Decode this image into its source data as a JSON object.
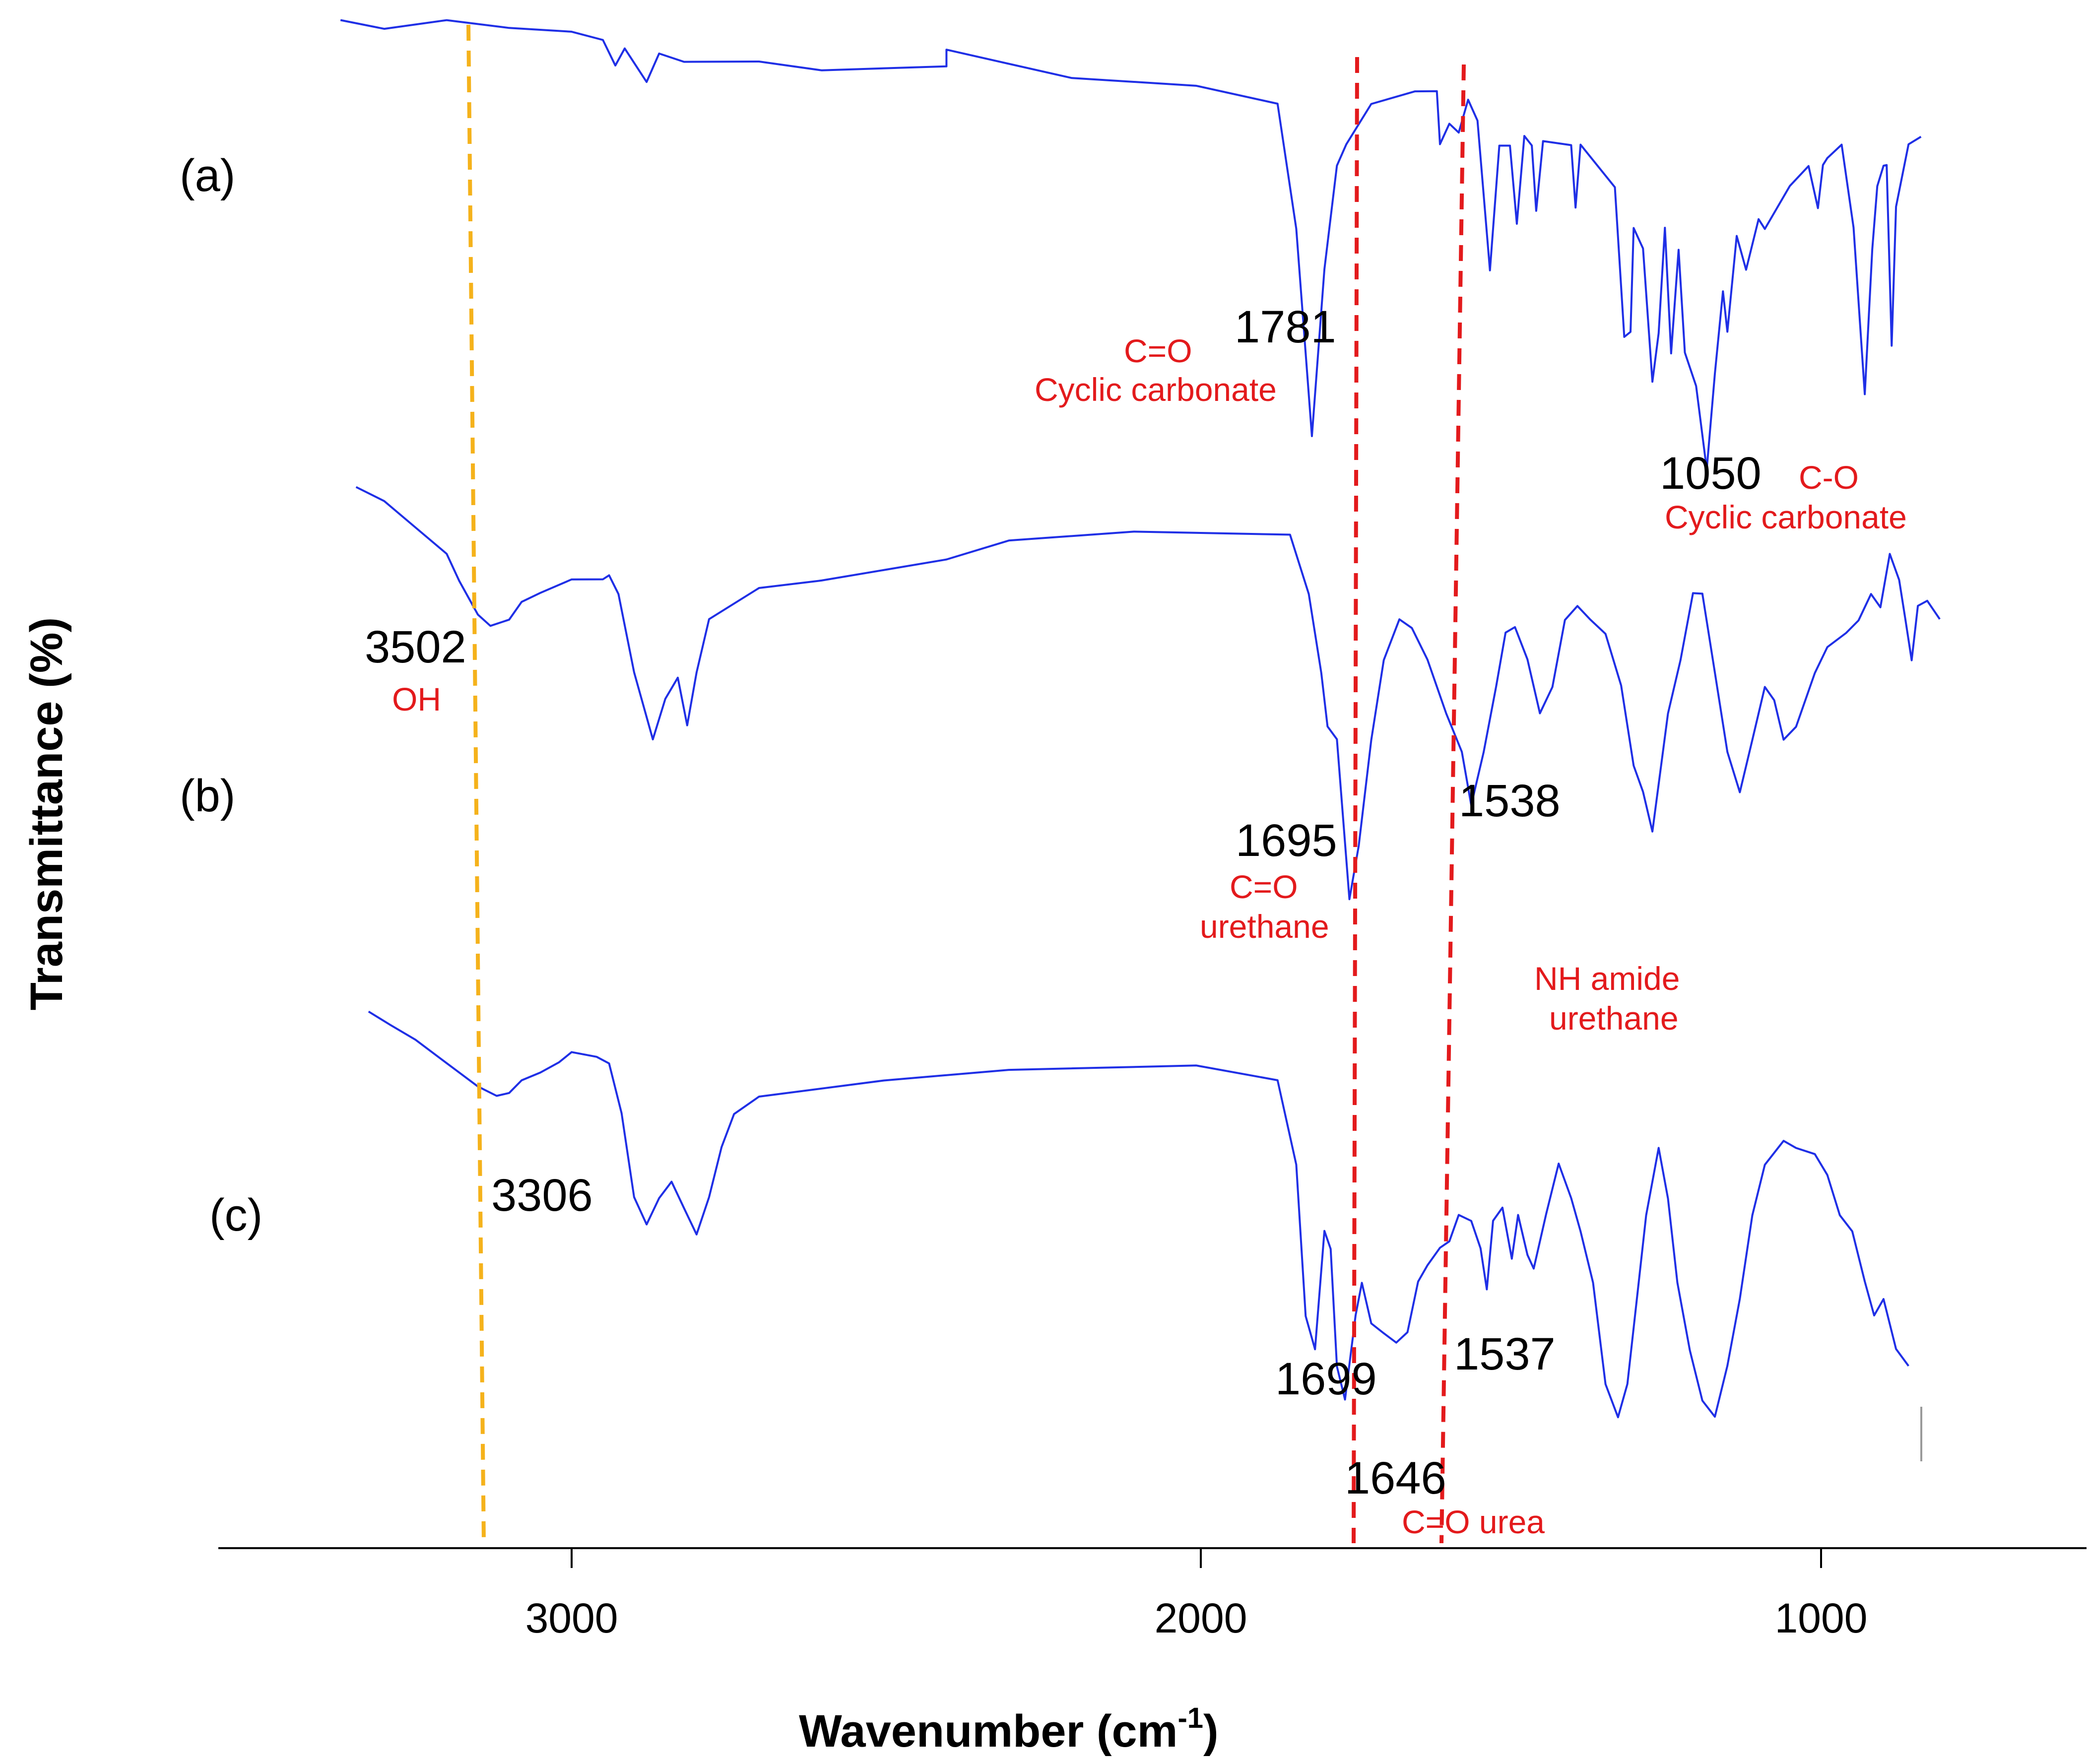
{
  "chart_data": {
    "type": "line",
    "title": "",
    "xlabel": "Wavenumber (cm",
    "xlabel_superscript": "-1",
    "xlabel_suffix": ")",
    "ylabel": "Transmittance (%)",
    "xlim": [
      3570,
      570
    ],
    "x_reversed": true,
    "x_ticks": [
      3000,
      2000,
      1000
    ],
    "x_tick_labels": [
      "3000",
      "2000",
      "1000"
    ],
    "y_ticks_shown": false,
    "series": [
      {
        "name": "(a)",
        "points": [
          [
            3370,
            0.0
          ],
          [
            3300,
            0.02
          ],
          [
            3200,
            0.0
          ],
          [
            3100,
            0.02
          ],
          [
            3000,
            0.03
          ],
          [
            2950,
            0.05
          ],
          [
            2930,
            0.11
          ],
          [
            2915,
            0.07
          ],
          [
            2880,
            0.15
          ],
          [
            2860,
            0.08
          ],
          [
            2820,
            0.1
          ],
          [
            2700,
            0.1
          ],
          [
            2600,
            0.12
          ],
          [
            2400,
            0.11
          ],
          [
            2400,
            0.07
          ],
          [
            2200,
            0.14
          ],
          [
            2000,
            0.16
          ],
          [
            1870,
            0.2
          ],
          [
            1840,
            0.5
          ],
          [
            1815,
            1.0
          ],
          [
            1795,
            0.6
          ],
          [
            1775,
            0.35
          ],
          [
            1760,
            0.3
          ],
          [
            1720,
            0.2
          ],
          [
            1650,
            0.17
          ],
          [
            1615,
            0.17
          ],
          [
            1610,
            0.3
          ],
          [
            1595,
            0.25
          ],
          [
            1580,
            0.27
          ],
          [
            1565,
            0.19
          ],
          [
            1550,
            0.24
          ],
          [
            1530,
            0.6
          ],
          [
            1515,
            0.3
          ],
          [
            1498,
            0.3
          ],
          [
            1487,
            0.49
          ],
          [
            1475,
            0.28
          ],
          [
            1463,
            0.3
          ],
          [
            1456,
            0.46
          ],
          [
            1445,
            0.29
          ],
          [
            1400,
            0.3
          ],
          [
            1393,
            0.45
          ],
          [
            1385,
            0.3
          ],
          [
            1330,
            0.4
          ],
          [
            1315,
            0.76
          ],
          [
            1305,
            0.75
          ],
          [
            1300,
            0.5
          ],
          [
            1285,
            0.55
          ],
          [
            1270,
            0.87
          ],
          [
            1260,
            0.75
          ],
          [
            1250,
            0.5
          ],
          [
            1240,
            0.8
          ],
          [
            1228,
            0.55
          ],
          [
            1218,
            0.8
          ],
          [
            1200,
            0.88
          ],
          [
            1183,
            1.08
          ],
          [
            1170,
            0.85
          ],
          [
            1157,
            0.65
          ],
          [
            1150,
            0.75
          ],
          [
            1135,
            0.52
          ],
          [
            1120,
            0.6
          ],
          [
            1100,
            0.48
          ],
          [
            1090,
            0.5
          ],
          [
            1050,
            0.4
          ],
          [
            1020,
            0.35
          ],
          [
            1005,
            0.45
          ],
          [
            997,
            0.35
          ],
          [
            990,
            0.33
          ],
          [
            967,
            0.3
          ],
          [
            948,
            0.5
          ],
          [
            930,
            0.9
          ],
          [
            918,
            0.55
          ],
          [
            910,
            0.4
          ],
          [
            900,
            0.35
          ],
          [
            895,
            0.35
          ],
          [
            887,
            0.78
          ],
          [
            880,
            0.45
          ],
          [
            860,
            0.3
          ],
          [
            840,
            0.28
          ]
        ]
      },
      {
        "name": "(b)",
        "points": [
          [
            3345,
            0.05
          ],
          [
            3300,
            0.1
          ],
          [
            3250,
            0.2
          ],
          [
            3200,
            0.3
          ],
          [
            3180,
            0.4
          ],
          [
            3150,
            0.53
          ],
          [
            3130,
            0.57
          ],
          [
            3100,
            0.55
          ],
          [
            3080,
            0.48
          ],
          [
            3050,
            0.45
          ],
          [
            3000,
            0.4
          ],
          [
            2950,
            0.4
          ],
          [
            2940,
            0.38
          ],
          [
            2925,
            0.45
          ],
          [
            2900,
            0.75
          ],
          [
            2870,
            1.0
          ],
          [
            2850,
            0.85
          ],
          [
            2830,
            0.77
          ],
          [
            2815,
            0.95
          ],
          [
            2800,
            0.75
          ],
          [
            2780,
            0.55
          ],
          [
            2700,
            0.43
          ],
          [
            2600,
            0.4
          ],
          [
            2400,
            0.32
          ],
          [
            2300,
            0.25
          ],
          [
            2100,
            0.22
          ],
          [
            1850,
            0.23
          ],
          [
            1820,
            0.45
          ],
          [
            1800,
            0.75
          ],
          [
            1790,
            0.95
          ],
          [
            1775,
            1.0
          ],
          [
            1755,
            1.6
          ],
          [
            1740,
            1.4
          ],
          [
            1720,
            1.0
          ],
          [
            1700,
            0.7
          ],
          [
            1675,
            0.55
          ],
          [
            1655,
            0.58
          ],
          [
            1630,
            0.7
          ],
          [
            1600,
            0.9
          ],
          [
            1575,
            1.05
          ],
          [
            1560,
            1.25
          ],
          [
            1540,
            1.05
          ],
          [
            1520,
            0.8
          ],
          [
            1505,
            0.6
          ],
          [
            1490,
            0.58
          ],
          [
            1470,
            0.7
          ],
          [
            1450,
            0.9
          ],
          [
            1430,
            0.8
          ],
          [
            1410,
            0.55
          ],
          [
            1390,
            0.5
          ],
          [
            1370,
            0.55
          ],
          [
            1345,
            0.6
          ],
          [
            1320,
            0.8
          ],
          [
            1300,
            1.1
          ],
          [
            1285,
            1.2
          ],
          [
            1270,
            1.35
          ],
          [
            1245,
            0.9
          ],
          [
            1225,
            0.7
          ],
          [
            1205,
            0.45
          ],
          [
            1190,
            0.45
          ],
          [
            1170,
            0.75
          ],
          [
            1150,
            1.05
          ],
          [
            1130,
            1.2
          ],
          [
            1110,
            1.0
          ],
          [
            1090,
            0.8
          ],
          [
            1075,
            0.85
          ],
          [
            1060,
            1.0
          ],
          [
            1040,
            0.95
          ],
          [
            1010,
            0.75
          ],
          [
            990,
            0.65
          ],
          [
            960,
            0.6
          ],
          [
            940,
            0.55
          ],
          [
            920,
            0.45
          ],
          [
            905,
            0.5
          ],
          [
            890,
            0.3
          ],
          [
            875,
            0.4
          ],
          [
            865,
            0.55
          ],
          [
            855,
            0.7
          ],
          [
            845,
            0.5
          ],
          [
            830,
            0.48
          ],
          [
            810,
            0.55
          ]
        ]
      },
      {
        "name": "(c)",
        "points": [
          [
            3325,
            0.0
          ],
          [
            3290,
            0.04
          ],
          [
            3250,
            0.08
          ],
          [
            3200,
            0.15
          ],
          [
            3150,
            0.22
          ],
          [
            3120,
            0.25
          ],
          [
            3100,
            0.24
          ],
          [
            3080,
            0.2
          ],
          [
            3050,
            0.18
          ],
          [
            3020,
            0.15
          ],
          [
            3000,
            0.12
          ],
          [
            2960,
            0.13
          ],
          [
            2940,
            0.15
          ],
          [
            2920,
            0.3
          ],
          [
            2900,
            0.55
          ],
          [
            2880,
            0.63
          ],
          [
            2860,
            0.55
          ],
          [
            2840,
            0.5
          ],
          [
            2820,
            0.58
          ],
          [
            2800,
            0.66
          ],
          [
            2780,
            0.55
          ],
          [
            2760,
            0.4
          ],
          [
            2740,
            0.3
          ],
          [
            2700,
            0.25
          ],
          [
            2500,
            0.2
          ],
          [
            2300,
            0.17
          ],
          [
            2000,
            0.16
          ],
          [
            1870,
            0.2
          ],
          [
            1840,
            0.45
          ],
          [
            1825,
            0.9
          ],
          [
            1810,
            1.0
          ],
          [
            1795,
            0.65
          ],
          [
            1785,
            0.7
          ],
          [
            1775,
            1.05
          ],
          [
            1762,
            1.15
          ],
          [
            1745,
            0.9
          ],
          [
            1735,
            0.8
          ],
          [
            1720,
            0.92
          ],
          [
            1700,
            0.95
          ],
          [
            1680,
            0.98
          ],
          [
            1662,
            0.95
          ],
          [
            1645,
            0.8
          ],
          [
            1630,
            0.75
          ],
          [
            1610,
            0.7
          ],
          [
            1595,
            0.68
          ],
          [
            1580,
            0.6
          ],
          [
            1560,
            0.62
          ],
          [
            1545,
            0.7
          ],
          [
            1535,
            0.82
          ],
          [
            1525,
            0.62
          ],
          [
            1510,
            0.58
          ],
          [
            1495,
            0.73
          ],
          [
            1485,
            0.6
          ],
          [
            1470,
            0.72
          ],
          [
            1460,
            0.76
          ],
          [
            1440,
            0.6
          ],
          [
            1420,
            0.45
          ],
          [
            1400,
            0.55
          ],
          [
            1385,
            0.65
          ],
          [
            1365,
            0.8
          ],
          [
            1345,
            1.1
          ],
          [
            1325,
            1.2
          ],
          [
            1310,
            1.1
          ],
          [
            1295,
            0.85
          ],
          [
            1280,
            0.6
          ],
          [
            1260,
            0.4
          ],
          [
            1245,
            0.55
          ],
          [
            1230,
            0.8
          ],
          [
            1210,
            1.0
          ],
          [
            1190,
            1.15
          ],
          [
            1170,
            1.2
          ],
          [
            1150,
            1.05
          ],
          [
            1130,
            0.85
          ],
          [
            1110,
            0.6
          ],
          [
            1090,
            0.45
          ],
          [
            1060,
            0.38
          ],
          [
            1040,
            0.4
          ],
          [
            1010,
            0.42
          ],
          [
            990,
            0.48
          ],
          [
            970,
            0.6
          ],
          [
            950,
            0.65
          ],
          [
            930,
            0.8
          ],
          [
            915,
            0.9
          ],
          [
            900,
            0.85
          ],
          [
            880,
            1.0
          ],
          [
            860,
            1.05
          ]
        ]
      }
    ]
  },
  "panel_labels": [
    {
      "id": "a",
      "text": "(a)"
    },
    {
      "id": "b",
      "text": "(b)"
    },
    {
      "id": "c",
      "text": "(c)"
    }
  ],
  "peak_labels": [
    {
      "id": "p1781",
      "text": "1781"
    },
    {
      "id": "p1050",
      "text": "1050"
    },
    {
      "id": "p3502",
      "text": "3502"
    },
    {
      "id": "p1695",
      "text": "1695"
    },
    {
      "id": "p1538",
      "text": "1538"
    },
    {
      "id": "p3306",
      "text": "3306"
    },
    {
      "id": "p1699",
      "text": "1699"
    },
    {
      "id": "p1537",
      "text": "1537"
    },
    {
      "id": "p1646",
      "text": "1646"
    }
  ],
  "assignment_labels": [
    {
      "id": "co-cyclic-1",
      "text": "C=O"
    },
    {
      "id": "cyclic-carbonate-1",
      "text": "Cyclic carbonate"
    },
    {
      "id": "c-o",
      "text": "C-O"
    },
    {
      "id": "cyclic-carbonate-2",
      "text": "Cyclic carbonate"
    },
    {
      "id": "oh",
      "text": "OH"
    },
    {
      "id": "co-urethane",
      "text": "C=O"
    },
    {
      "id": "urethane-1",
      "text": "urethane"
    },
    {
      "id": "nh-amide",
      "text": "NH amide"
    },
    {
      "id": "urethane-2",
      "text": "urethane"
    },
    {
      "id": "co-urea",
      "text": "C=O urea"
    }
  ],
  "reference_lines": [
    {
      "id": "oh-line",
      "color": "#f5b21b",
      "style": "dashed"
    },
    {
      "id": "co-line",
      "color": "#e31a1c",
      "style": "dashed"
    },
    {
      "id": "nh-line",
      "color": "#e31a1c",
      "style": "dashed"
    }
  ],
  "colors": {
    "spectrum": "#1f2fe6",
    "assignment_text": "#e31a1c",
    "oh_reference": "#f5b21b",
    "peak_text": "#000000"
  }
}
